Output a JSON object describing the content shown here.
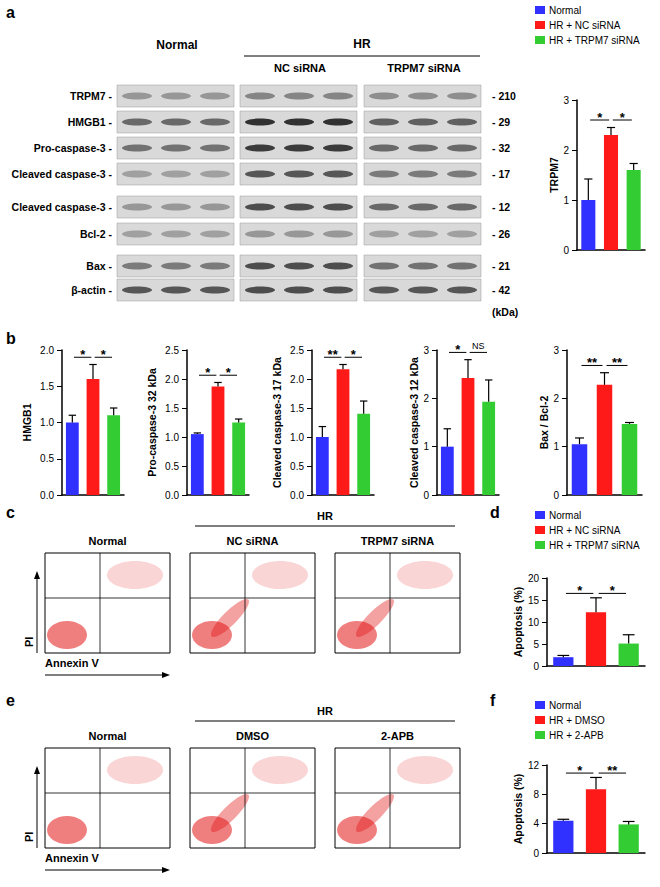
{
  "panel_labels": [
    "a",
    "b",
    "c",
    "d",
    "e",
    "f"
  ],
  "blot": {
    "normal": "Normal",
    "hr": "HR",
    "subgroups": [
      "NC siRNA",
      "TRPM7 siRNA"
    ],
    "rows": [
      {
        "label": "TRPM7 -",
        "kda": "- 210"
      },
      {
        "label": "HMGB1 -",
        "kda": "- 29"
      },
      {
        "label": "Pro-caspase-3 -",
        "kda": "- 32"
      },
      {
        "label": "Cleaved caspase-3 -",
        "kda": "- 17"
      },
      {
        "label": "Cleaved caspase-3 -",
        "kda": "- 12"
      },
      {
        "label": "Bcl-2 -",
        "kda": "- 26"
      },
      {
        "label": "Bax -",
        "kda": "- 21"
      },
      {
        "label": "β-actin -",
        "kda": "- 42"
      }
    ],
    "unit": "(kDa)"
  },
  "flow": [
    {
      "hr": "HR",
      "groups": [
        "Normal",
        "NC siRNA",
        "TRPM7 siRNA"
      ],
      "y_label": "PI",
      "x_label": "Annexin V"
    },
    {
      "hr": "HR",
      "groups": [
        "Normal",
        "DMSO",
        "2-APB"
      ],
      "y_label": "PI",
      "x_label": "Annexin V"
    }
  ],
  "chart_data": [
    {
      "type": "bar",
      "y_label": "TRPM7",
      "categories": [
        "Normal",
        "HR + NC siRNA",
        "HR + TRPM7 siRNA"
      ],
      "colors": [
        "#3030ff",
        "#ff1a1a",
        "#33cc33"
      ],
      "values": [
        1.0,
        2.3,
        1.6
      ],
      "errors": [
        0.42,
        0.15,
        0.13
      ],
      "ylim": [
        0,
        3
      ],
      "yticks": [
        0,
        1,
        2,
        3
      ],
      "annotations": [
        {
          "between": [
            0,
            1
          ],
          "text": "*"
        },
        {
          "between": [
            1,
            2
          ],
          "text": "*"
        }
      ],
      "tick_labels": "y",
      "grid": false,
      "legend": "top-right"
    },
    {
      "type": "bar",
      "y_label": "HMGB1",
      "categories": [
        "Normal",
        "HR + NC siRNA",
        "HR + TRPM7 siRNA"
      ],
      "colors": [
        "#3030ff",
        "#ff1a1a",
        "#33cc33"
      ],
      "values": [
        1.0,
        1.6,
        1.1
      ],
      "errors": [
        0.1,
        0.2,
        0.1
      ],
      "ylim": [
        0,
        2
      ],
      "yticks": [
        {
          "value": 0,
          "label": "0.0"
        },
        0.5,
        {
          "value": 1,
          "label": "1.0"
        },
        1.5,
        {
          "value": 2,
          "label": "2.0"
        }
      ],
      "annotations": [
        {
          "between": [
            0,
            1
          ],
          "text": "*"
        },
        {
          "between": [
            1,
            2
          ],
          "text": "*"
        }
      ],
      "tick_labels": "y",
      "grid": false
    },
    {
      "type": "bar",
      "y_label": "Pro-caspase-3 32 kDa",
      "categories": [
        "Normal",
        "HR + NC siRNA",
        "HR + TRPM7 siRNA"
      ],
      "colors": [
        "#3030ff",
        "#ff1a1a",
        "#33cc33"
      ],
      "values": [
        1.05,
        1.87,
        1.25
      ],
      "errors": [
        0.02,
        0.07,
        0.06
      ],
      "ylim": [
        0,
        2.5
      ],
      "yticks": [
        {
          "value": 0,
          "label": "0.0"
        },
        0.5,
        {
          "value": 1,
          "label": "1.0"
        },
        1.5,
        {
          "value": 2,
          "label": "2.0"
        },
        2.5
      ],
      "annotations": [
        {
          "between": [
            0,
            1
          ],
          "text": "*"
        },
        {
          "between": [
            1,
            2
          ],
          "text": "*"
        }
      ],
      "tick_labels": "y",
      "grid": false
    },
    {
      "type": "bar",
      "y_label": "Cleaved caspase-3 17 kDa",
      "categories": [
        "Normal",
        "HR + NC siRNA",
        "HR + TRPM7 siRNA"
      ],
      "colors": [
        "#3030ff",
        "#ff1a1a",
        "#33cc33"
      ],
      "values": [
        1.0,
        2.17,
        1.4
      ],
      "errors": [
        0.18,
        0.08,
        0.22
      ],
      "ylim": [
        0,
        2.5
      ],
      "yticks": [
        {
          "value": 0,
          "label": "0.0"
        },
        0.5,
        {
          "value": 1,
          "label": "1.0"
        },
        1.5,
        {
          "value": 2,
          "label": "2.0"
        },
        2.5
      ],
      "annotations": [
        {
          "between": [
            0,
            1
          ],
          "text": "**"
        },
        {
          "between": [
            1,
            2
          ],
          "text": "*"
        }
      ],
      "tick_labels": "y",
      "grid": false
    },
    {
      "type": "bar",
      "y_label": "Cleaved caspase-3 12 kDa",
      "categories": [
        "Normal",
        "HR + NC siRNA",
        "HR + TRPM7 siRNA"
      ],
      "colors": [
        "#3030ff",
        "#ff1a1a",
        "#33cc33"
      ],
      "values": [
        1.0,
        2.42,
        1.93
      ],
      "errors": [
        0.37,
        0.38,
        0.45
      ],
      "ylim": [
        0,
        3
      ],
      "yticks": [
        0,
        1,
        2,
        3
      ],
      "annotations": [
        {
          "between": [
            0,
            1
          ],
          "text": "*"
        },
        {
          "between": [
            1,
            2
          ],
          "text": "NS"
        }
      ],
      "tick_labels": "y",
      "grid": false
    },
    {
      "type": "bar",
      "y_label": "Bax / Bcl-2",
      "categories": [
        "Normal",
        "HR + NC siRNA",
        "HR + TRPM7 siRNA"
      ],
      "colors": [
        "#3030ff",
        "#ff1a1a",
        "#33cc33"
      ],
      "values": [
        1.05,
        2.28,
        1.47
      ],
      "errors": [
        0.13,
        0.25,
        0.03
      ],
      "ylim": [
        0,
        3
      ],
      "yticks": [
        0,
        1,
        2,
        3
      ],
      "annotations": [
        {
          "between": [
            0,
            1
          ],
          "text": "**"
        },
        {
          "between": [
            1,
            2
          ],
          "text": "**"
        }
      ],
      "tick_labels": "y",
      "grid": false
    },
    {
      "type": "bar",
      "y_label": "Apoptosis (%)",
      "categories": [
        "Normal",
        "HR + NC siRNA",
        "HR + TRPM7 siRNA"
      ],
      "colors": [
        "#3030ff",
        "#ff1a1a",
        "#33cc33"
      ],
      "values": [
        2.0,
        12.2,
        5.1
      ],
      "errors": [
        0.4,
        3.3,
        2.0
      ],
      "ylim": [
        0,
        20
      ],
      "yticks": [
        0,
        5,
        10,
        15,
        20
      ],
      "annotations": [
        {
          "between": [
            0,
            1
          ],
          "text": "*"
        },
        {
          "between": [
            1,
            2
          ],
          "text": "*"
        }
      ],
      "tick_labels": "y",
      "grid": false,
      "legend": "top-right"
    },
    {
      "type": "bar",
      "y_label": "Apoptosis (%)",
      "categories": [
        "Normal",
        "HR + DMSO",
        "HR + 2-APB"
      ],
      "colors": [
        "#3030ff",
        "#ff1a1a",
        "#33cc33"
      ],
      "values": [
        4.4,
        8.7,
        3.9
      ],
      "errors": [
        0.2,
        1.6,
        0.4
      ],
      "ylim": [
        0,
        12
      ],
      "yticks": [
        0,
        4,
        8,
        12
      ],
      "annotations": [
        {
          "between": [
            0,
            1
          ],
          "text": "*"
        },
        {
          "between": [
            1,
            2
          ],
          "text": "**"
        }
      ],
      "tick_labels": "y",
      "grid": false,
      "legend": "top-right"
    }
  ]
}
